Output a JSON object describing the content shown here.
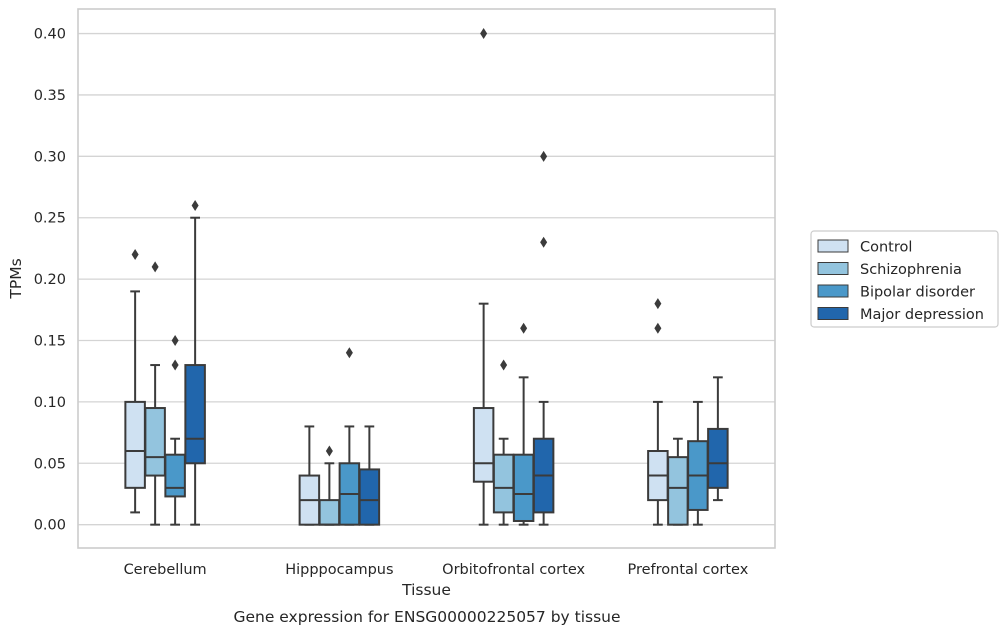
{
  "chart_data": {
    "type": "box",
    "title": "",
    "xlabel": "Tissue",
    "ylabel": "TPMs",
    "caption": "Gene expression for ENSG00000225057 by tissue",
    "ylim": [
      -0.019,
      0.42
    ],
    "yticks": [
      "0.00",
      "0.05",
      "0.10",
      "0.15",
      "0.20",
      "0.25",
      "0.30",
      "0.35",
      "0.40"
    ],
    "ytick_values": [
      0,
      0.05,
      0.1,
      0.15,
      0.2,
      0.25,
      0.3,
      0.35,
      0.4
    ],
    "grid": "horizontal",
    "legend_position": "right",
    "categories": [
      "Cerebellum",
      "Hipppocampus",
      "Orbitofrontal cortex",
      "Prefrontal cortex"
    ],
    "series": [
      {
        "name": "Control",
        "color": "#cfe1f2",
        "boxes": [
          {
            "whisker_low": 0.01,
            "q1": 0.03,
            "median": 0.06,
            "q3": 0.1,
            "whisker_high": 0.19,
            "outliers": [
              0.22
            ]
          },
          {
            "whisker_low": 0.0,
            "q1": 0.0,
            "median": 0.02,
            "q3": 0.04,
            "whisker_high": 0.08,
            "outliers": []
          },
          {
            "whisker_low": 0.0,
            "q1": 0.035,
            "median": 0.05,
            "q3": 0.095,
            "whisker_high": 0.18,
            "outliers": [
              0.4
            ]
          },
          {
            "whisker_low": 0.0,
            "q1": 0.02,
            "median": 0.04,
            "q3": 0.06,
            "whisker_high": 0.1,
            "outliers": [
              0.16,
              0.18
            ]
          }
        ]
      },
      {
        "name": "Schizophrenia",
        "color": "#93c4de",
        "boxes": [
          {
            "whisker_low": 0.0,
            "q1": 0.04,
            "median": 0.055,
            "q3": 0.095,
            "whisker_high": 0.13,
            "outliers": [
              0.21
            ]
          },
          {
            "whisker_low": 0.0,
            "q1": 0.0,
            "median": 0.0,
            "q3": 0.02,
            "whisker_high": 0.05,
            "outliers": [
              0.06
            ]
          },
          {
            "whisker_low": 0.0,
            "q1": 0.01,
            "median": 0.03,
            "q3": 0.057,
            "whisker_high": 0.07,
            "outliers": [
              0.13
            ]
          },
          {
            "whisker_low": 0.0,
            "q1": 0.0,
            "median": 0.03,
            "q3": 0.055,
            "whisker_high": 0.07,
            "outliers": []
          }
        ]
      },
      {
        "name": "Bipolar disorder",
        "color": "#4a98c9",
        "boxes": [
          {
            "whisker_low": 0.0,
            "q1": 0.023,
            "median": 0.03,
            "q3": 0.057,
            "whisker_high": 0.07,
            "outliers": [
              0.13,
              0.15
            ]
          },
          {
            "whisker_low": 0.0,
            "q1": 0.0,
            "median": 0.025,
            "q3": 0.05,
            "whisker_high": 0.08,
            "outliers": [
              0.14
            ]
          },
          {
            "whisker_low": 0.0,
            "q1": 0.003,
            "median": 0.025,
            "q3": 0.057,
            "whisker_high": 0.12,
            "outliers": [
              0.16
            ]
          },
          {
            "whisker_low": 0.0,
            "q1": 0.012,
            "median": 0.04,
            "q3": 0.068,
            "whisker_high": 0.1,
            "outliers": []
          }
        ]
      },
      {
        "name": "Major depression",
        "color": "#2166ac",
        "boxes": [
          {
            "whisker_low": 0.0,
            "q1": 0.05,
            "median": 0.07,
            "q3": 0.13,
            "whisker_high": 0.25,
            "outliers": [
              0.26
            ]
          },
          {
            "whisker_low": 0.0,
            "q1": 0.0,
            "median": 0.02,
            "q3": 0.045,
            "whisker_high": 0.08,
            "outliers": []
          },
          {
            "whisker_low": 0.0,
            "q1": 0.01,
            "median": 0.04,
            "q3": 0.07,
            "whisker_high": 0.1,
            "outliers": [
              0.23,
              0.3
            ]
          },
          {
            "whisker_low": 0.02,
            "q1": 0.03,
            "median": 0.05,
            "q3": 0.078,
            "whisker_high": 0.12,
            "outliers": []
          }
        ]
      }
    ]
  }
}
